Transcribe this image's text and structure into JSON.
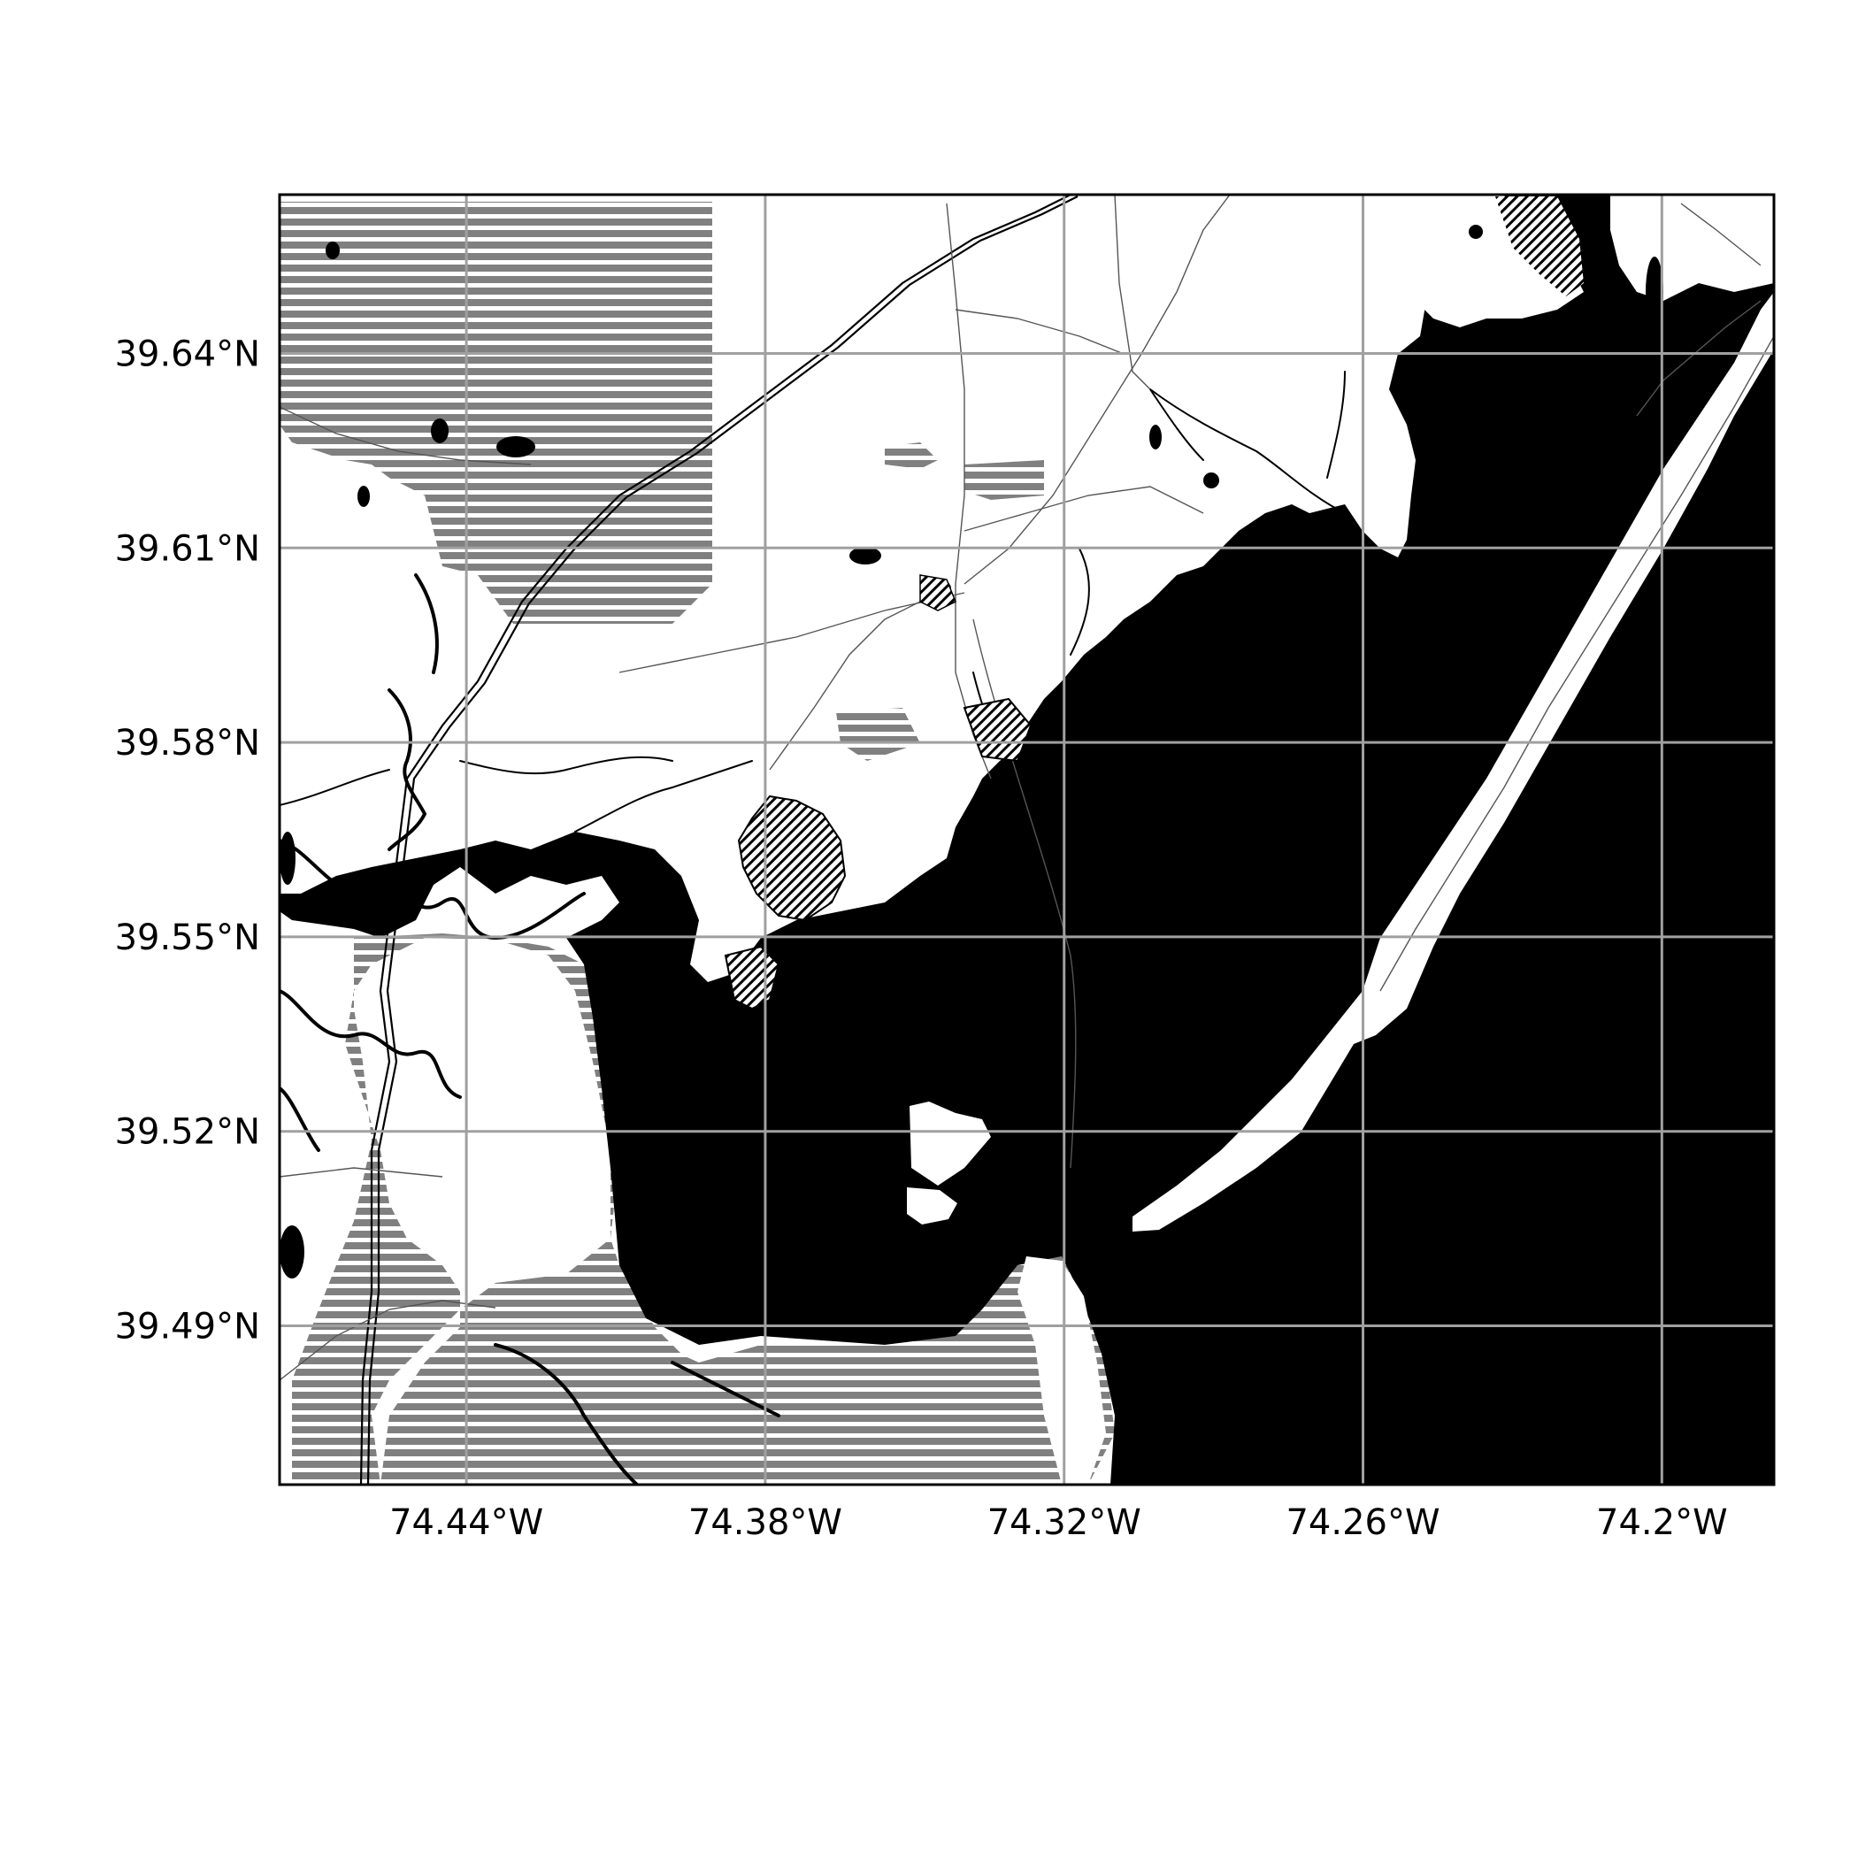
{
  "map": {
    "type": "map",
    "style": "black-and-white street map",
    "projection": "lat/lon graticule",
    "lon_range": [
      -74.4775,
      -74.1775
    ],
    "lat_range": [
      39.4655,
      39.6645
    ],
    "grid": true,
    "frame": true,
    "colors": {
      "water": "#000000",
      "land": "#ffffff",
      "grid": "#a0a0a0",
      "wetland_hatch": "#808080",
      "frame": "#000000"
    },
    "x_ticks": [
      {
        "value": -74.44,
        "label": "74.44°W"
      },
      {
        "value": -74.38,
        "label": "74.38°W"
      },
      {
        "value": -74.32,
        "label": "74.32°W"
      },
      {
        "value": -74.26,
        "label": "74.26°W"
      },
      {
        "value": -74.2,
        "label": "74.2°W"
      }
    ],
    "y_ticks": [
      {
        "value": 39.64,
        "label": "39.64°N"
      },
      {
        "value": 39.61,
        "label": "39.61°N"
      },
      {
        "value": 39.58,
        "label": "39.58°N"
      },
      {
        "value": 39.55,
        "label": "39.55°N"
      },
      {
        "value": 39.52,
        "label": "39.52°N"
      },
      {
        "value": 39.49,
        "label": "39.49°N"
      }
    ]
  }
}
